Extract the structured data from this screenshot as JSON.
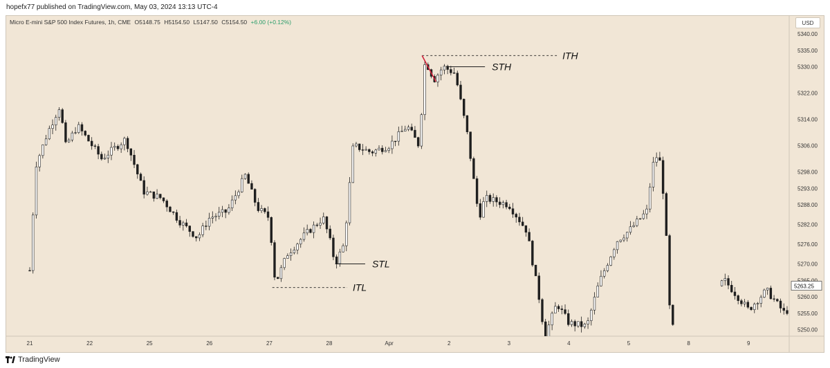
{
  "header": {
    "published": "hopefx77 published on TradingView.com, May 03, 2024 13:13 UTC-4"
  },
  "symbol": {
    "name": "Micro E-mini S&P 500 Index Futures, 1h, CME",
    "open": "O5148.75",
    "high": "H5154.50",
    "low": "L5147.50",
    "close": "C5154.50",
    "change": "+6.00 (+0.12%)"
  },
  "currency": "USD",
  "footer": {
    "brand": "TradingView"
  },
  "colors": {
    "background": "#f1e6d6",
    "candle": "#1f1f1f",
    "annotation_red": "#d0203a",
    "last_price_box": "#ffffff"
  },
  "chart_data": {
    "type": "candlestick",
    "timeframe": "1h",
    "ylim": [
      5248,
      5344
    ],
    "y_ticks": [
      "5340.00",
      "5335.00",
      "5330.00",
      "5322.00",
      "5314.00",
      "5306.00",
      "5298.00",
      "5293.00",
      "5288.00",
      "5282.00",
      "5276.00",
      "5270.00",
      "5265.00",
      "5260.00",
      "5255.00",
      "5250.00"
    ],
    "x_ticks": [
      "21",
      "22",
      "25",
      "26",
      "27",
      "28",
      "Apr",
      "2",
      "3",
      "4",
      "5",
      "8",
      "9"
    ],
    "last_price": "5263.25",
    "price_path": [
      {
        "x": 0.0,
        "y": 5268
      },
      {
        "x": 0.1,
        "y": 5300
      },
      {
        "x": 0.3,
        "y": 5310
      },
      {
        "x": 0.5,
        "y": 5318
      },
      {
        "x": 0.6,
        "y": 5306
      },
      {
        "x": 0.8,
        "y": 5312
      },
      {
        "x": 1.2,
        "y": 5302
      },
      {
        "x": 1.6,
        "y": 5308
      },
      {
        "x": 1.9,
        "y": 5292
      },
      {
        "x": 2.2,
        "y": 5290
      },
      {
        "x": 2.5,
        "y": 5283
      },
      {
        "x": 2.8,
        "y": 5278
      },
      {
        "x": 3.0,
        "y": 5284
      },
      {
        "x": 3.3,
        "y": 5286
      },
      {
        "x": 3.6,
        "y": 5297
      },
      {
        "x": 3.8,
        "y": 5287
      },
      {
        "x": 4.0,
        "y": 5284
      },
      {
        "x": 4.1,
        "y": 5264
      },
      {
        "x": 4.3,
        "y": 5273
      },
      {
        "x": 4.6,
        "y": 5279
      },
      {
        "x": 4.9,
        "y": 5284
      },
      {
        "x": 5.0,
        "y": 5278
      },
      {
        "x": 5.1,
        "y": 5270
      },
      {
        "x": 5.25,
        "y": 5276
      },
      {
        "x": 5.4,
        "y": 5306
      },
      {
        "x": 5.7,
        "y": 5304
      },
      {
        "x": 6.0,
        "y": 5306
      },
      {
        "x": 6.3,
        "y": 5312
      },
      {
        "x": 6.5,
        "y": 5306
      },
      {
        "x": 6.6,
        "y": 5332
      },
      {
        "x": 6.75,
        "y": 5326
      },
      {
        "x": 6.9,
        "y": 5330
      },
      {
        "x": 7.1,
        "y": 5328
      },
      {
        "x": 7.3,
        "y": 5310
      },
      {
        "x": 7.5,
        "y": 5284
      },
      {
        "x": 7.6,
        "y": 5290
      },
      {
        "x": 8.0,
        "y": 5288
      },
      {
        "x": 8.3,
        "y": 5280
      },
      {
        "x": 8.5,
        "y": 5260
      },
      {
        "x": 8.6,
        "y": 5248
      },
      {
        "x": 8.8,
        "y": 5258
      },
      {
        "x": 9.0,
        "y": 5252
      },
      {
        "x": 9.3,
        "y": 5251
      },
      {
        "x": 9.5,
        "y": 5264
      },
      {
        "x": 9.8,
        "y": 5277
      },
      {
        "x": 10.0,
        "y": 5280
      },
      {
        "x": 10.3,
        "y": 5286
      },
      {
        "x": 10.4,
        "y": 5300
      },
      {
        "x": 10.5,
        "y": 5304
      },
      {
        "x": 10.6,
        "y": 5288
      },
      {
        "x": 10.7,
        "y": 5250
      },
      {
        "x": 11.6,
        "y": 5265
      },
      {
        "x": 12.0,
        "y": 5256
      },
      {
        "x": 12.3,
        "y": 5262
      },
      {
        "x": 12.6,
        "y": 5255
      },
      {
        "x": 13.0,
        "y": 5262
      },
      {
        "x": 13.4,
        "y": 5256
      },
      {
        "x": 13.6,
        "y": 5263
      }
    ],
    "gaps": [
      [
        10.75,
        11.55
      ]
    ],
    "annotations": [
      {
        "label": "ITH",
        "type": "dashed",
        "price": 5333.4,
        "x_start": 6.55,
        "x_end": 8.8
      },
      {
        "label": "STH",
        "type": "solid",
        "price": 5330.0,
        "x_start": 6.95,
        "x_end": 7.6
      },
      {
        "label": "STL",
        "type": "solid",
        "price": 5270.0,
        "x_start": 5.1,
        "x_end": 5.6
      },
      {
        "label": "ITL",
        "type": "dashed",
        "price": 5262.8,
        "x_start": 4.05,
        "x_end": 5.3
      }
    ],
    "red_line": {
      "x1": 6.55,
      "y1": 5333.4,
      "x2": 6.78,
      "y2": 5325.5
    }
  }
}
